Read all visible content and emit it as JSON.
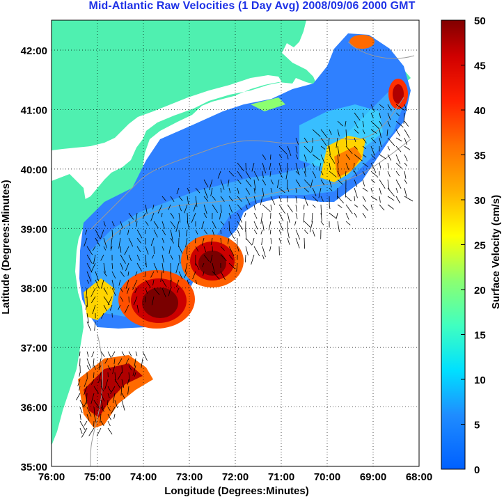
{
  "title": "Mid-Atlantic Raw Velocities (1 Day Avg) 2008/09/06 2000 GMT",
  "map": {
    "xlabel": "Longitude (Degrees:Minutes)",
    "ylabel": "Latitude (Degrees:Minutes)",
    "x_ticks": [
      "76:00",
      "75:00",
      "74:00",
      "73:00",
      "72:00",
      "71:00",
      "70:00",
      "69:00",
      "68:00"
    ],
    "y_ticks": [
      "42:00",
      "41:00",
      "40:00",
      "39:00",
      "38:00",
      "37:00",
      "36:00",
      "35:00"
    ],
    "land_color": "#4ff0b0",
    "grid": "dotted"
  },
  "colorbar": {
    "label": "Surface Velocity (cm/s)",
    "ticks": [
      "0",
      "5",
      "10",
      "15",
      "20",
      "25",
      "30",
      "35",
      "40",
      "45",
      "50"
    ]
  },
  "chart_data": {
    "type": "heatmap",
    "title": "Mid-Atlantic Raw Velocities (1 Day Avg) 2008/09/06 2000 GMT",
    "xlabel": "Longitude (Degrees:Minutes)",
    "ylabel": "Latitude (Degrees:Minutes)",
    "xlim": [
      -76,
      -68
    ],
    "ylim": [
      35,
      42.5
    ],
    "clim": [
      0,
      50
    ],
    "colorbar_label": "Surface Velocity (cm/s)",
    "colormap": "jet",
    "high_velocity_regions": [
      {
        "lon": -73.9,
        "lat": 37.85,
        "speed": 48
      },
      {
        "lon": -72.8,
        "lat": 38.5,
        "speed": 47
      },
      {
        "lon": -74.6,
        "lat": 36.3,
        "speed": 46
      },
      {
        "lon": -70.4,
        "lat": 40.05,
        "speed": 35
      },
      {
        "lon": -68.5,
        "lat": 41.25,
        "speed": 40
      },
      {
        "lon": -69.1,
        "lat": 42.1,
        "speed": 36
      }
    ],
    "background_speed_range": [
      3,
      12
    ]
  }
}
